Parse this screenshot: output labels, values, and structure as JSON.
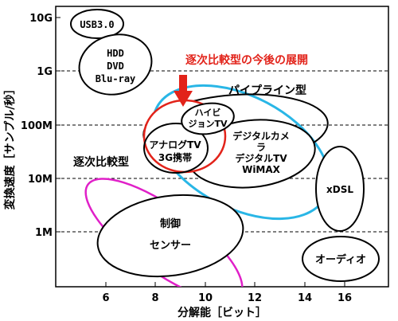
{
  "axes": {
    "xlabel": "分解能［ビット］",
    "ylabel": "変換速度［サンプル/秒］",
    "x_ticks": [
      "6",
      "8",
      "10",
      "12",
      "14",
      "16"
    ],
    "y_ticks": [
      "10G",
      "1G",
      "100M",
      "10M",
      "1M"
    ]
  },
  "labels": {
    "usb": "USB3.0",
    "hdd": "HDD",
    "dvd": "DVD",
    "bluray": "Blu-ray",
    "future": "逐次比較型の今後の展開",
    "pipeline": "パイプライン型",
    "hivision1": "ハイビ",
    "hivision2": "ジョンTV",
    "camera1": "デジタルカメ",
    "camera2": "ラ",
    "analog1": "アナログTV",
    "analog2": "3G携帯",
    "digitaltv": "デジタルTV",
    "wimax": "WiMAX",
    "sar": "逐次比較型",
    "xdsl": "xDSL",
    "control1": "制御",
    "control2": "センサー",
    "audio": "オーディオ"
  },
  "colors": {
    "pipeline": "#29b6e6",
    "sar": "#e020c8",
    "future": "#e2231a"
  }
}
